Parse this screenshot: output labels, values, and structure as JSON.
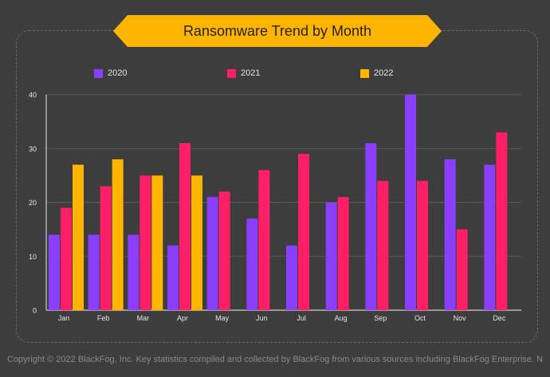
{
  "title": "Ransomware Trend by Month",
  "footer": "Copyright © 2022 BlackFog, Inc. Key statistics compiled and collected by BlackFog from various sources including BlackFog Enterprise. N",
  "colors": {
    "background": "#3d3d3d",
    "banner": "#ffb400",
    "2020": "#8a3ffc",
    "2021": "#ff1f66",
    "2022": "#ffb400"
  },
  "chart_data": {
    "type": "bar",
    "categories": [
      "Jan",
      "Feb",
      "Mar",
      "Apr",
      "May",
      "Jun",
      "Jul",
      "Aug",
      "Sep",
      "Oct",
      "Nov",
      "Dec"
    ],
    "series": [
      {
        "name": "2020",
        "color": "#8a3ffc",
        "values": [
          14,
          14,
          14,
          12,
          21,
          17,
          12,
          20,
          31,
          40,
          28,
          27
        ]
      },
      {
        "name": "2021",
        "color": "#ff1f66",
        "values": [
          19,
          23,
          25,
          31,
          22,
          26,
          29,
          21,
          24,
          24,
          15,
          33
        ]
      },
      {
        "name": "2022",
        "color": "#ffb400",
        "values": [
          27,
          28,
          25,
          25,
          null,
          null,
          null,
          null,
          null,
          null,
          null,
          null
        ]
      }
    ],
    "yticks": [
      0,
      10,
      20,
      30,
      40
    ],
    "ylim": [
      0,
      40
    ],
    "grid": true,
    "legend_position": "top"
  }
}
